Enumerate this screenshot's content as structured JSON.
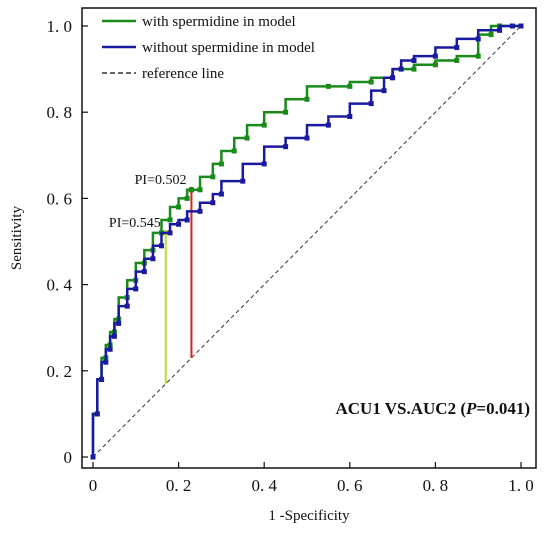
{
  "chart_data": {
    "type": "line",
    "xlabel": "1 -Specificity",
    "ylabel": "Sensitivity",
    "xlim": [
      0,
      1
    ],
    "ylim": [
      0,
      1
    ],
    "x_ticks": [
      0,
      0.2,
      0.4,
      0.6,
      0.8,
      1.0
    ],
    "x_tick_labels": [
      "0",
      "0. 2",
      "0. 4",
      "0. 6",
      "0. 8",
      "1. 0"
    ],
    "y_ticks": [
      0,
      0.2,
      0.4,
      0.6,
      0.8,
      1.0
    ],
    "y_tick_labels": [
      "0",
      "0. 2",
      "0. 4",
      "0. 6",
      "0. 8",
      "1. 0"
    ],
    "grid": false,
    "legend_position": "top-left",
    "series": [
      {
        "name": "with spermidine in model",
        "color": "#1a8a1a",
        "x": [
          0,
          0.01,
          0.02,
          0.03,
          0.04,
          0.05,
          0.06,
          0.08,
          0.1,
          0.12,
          0.14,
          0.16,
          0.18,
          0.2,
          0.22,
          0.23,
          0.25,
          0.28,
          0.3,
          0.33,
          0.36,
          0.4,
          0.45,
          0.5,
          0.55,
          0.6,
          0.65,
          0.7,
          0.75,
          0.8,
          0.85,
          0.9,
          0.93,
          0.95,
          1.0
        ],
        "y": [
          0,
          0.1,
          0.18,
          0.23,
          0.26,
          0.29,
          0.32,
          0.37,
          0.41,
          0.45,
          0.48,
          0.52,
          0.55,
          0.58,
          0.6,
          0.62,
          0.62,
          0.65,
          0.68,
          0.71,
          0.74,
          0.77,
          0.8,
          0.83,
          0.86,
          0.86,
          0.87,
          0.88,
          0.9,
          0.91,
          0.92,
          0.93,
          0.98,
          1.0,
          1.0
        ]
      },
      {
        "name": "without spermidine in model",
        "color": "#1a1aa0",
        "x": [
          0,
          0.01,
          0.02,
          0.03,
          0.04,
          0.05,
          0.06,
          0.08,
          0.1,
          0.12,
          0.14,
          0.16,
          0.18,
          0.2,
          0.22,
          0.25,
          0.28,
          0.3,
          0.35,
          0.4,
          0.45,
          0.5,
          0.55,
          0.6,
          0.65,
          0.68,
          0.7,
          0.72,
          0.75,
          0.8,
          0.85,
          0.9,
          0.95,
          0.98,
          1.0
        ],
        "y": [
          0,
          0.1,
          0.18,
          0.22,
          0.25,
          0.28,
          0.31,
          0.35,
          0.39,
          0.43,
          0.46,
          0.49,
          0.52,
          0.54,
          0.55,
          0.57,
          0.59,
          0.61,
          0.64,
          0.68,
          0.72,
          0.74,
          0.77,
          0.79,
          0.82,
          0.85,
          0.88,
          0.9,
          0.92,
          0.93,
          0.95,
          0.97,
          0.99,
          1.0,
          1.0
        ]
      }
    ],
    "reference_line": {
      "name": "reference line",
      "x": [
        0,
        1
      ],
      "y": [
        0,
        1
      ],
      "color": "#333333"
    },
    "cutoffs": [
      {
        "label": "PI=0.545",
        "x": 0.17,
        "y_top": 0.52,
        "color": "#b8e02a"
      },
      {
        "label": "PI=0.502",
        "x": 0.23,
        "y_top": 0.62,
        "color": "#e02020"
      }
    ],
    "annotation": {
      "prefix": "ACU1 VS.AUC2 (",
      "p_label": "P",
      "suffix": "=0.041)"
    }
  }
}
